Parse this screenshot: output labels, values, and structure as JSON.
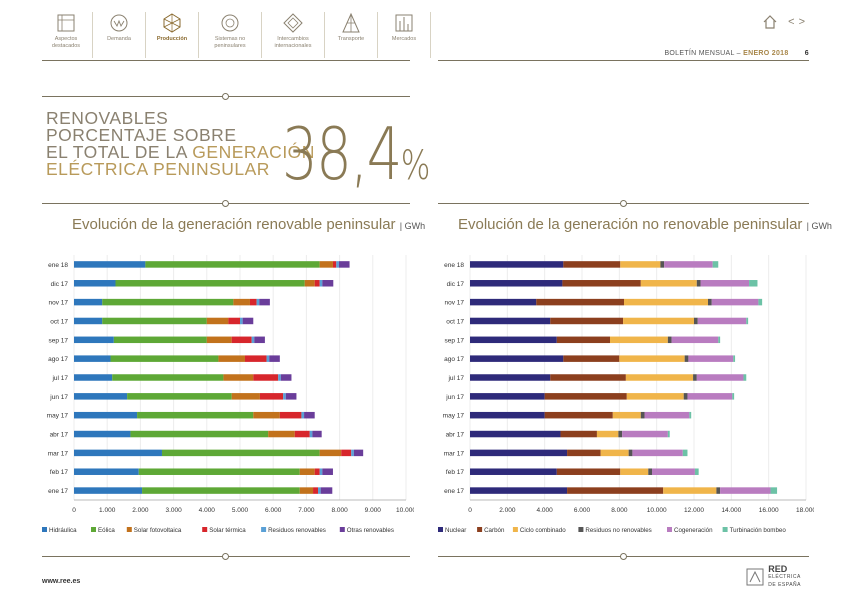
{
  "nav": [
    {
      "label": "Aspectos destacados",
      "icon": "highlights-icon",
      "active": false
    },
    {
      "label": "Demanda",
      "icon": "demand-icon",
      "active": false
    },
    {
      "label": "Producción",
      "icon": "production-icon",
      "active": true
    },
    {
      "label": "Sistemas no peninsulares",
      "icon": "non-peninsular-icon",
      "active": false
    },
    {
      "label": "Intercambios internacionales",
      "icon": "international-exchange-icon",
      "active": false
    },
    {
      "label": "Transporte",
      "icon": "transport-icon",
      "active": false
    },
    {
      "label": "Mercados",
      "icon": "markets-icon",
      "active": false
    }
  ],
  "header": {
    "bulletin_prefix": "BOLETÍN MENSUAL",
    "separator": "–",
    "month": "ENERO 2018",
    "page": "6",
    "prev_arrow": "<",
    "next_arrow": ">"
  },
  "headline": {
    "line1": "RENOVABLES",
    "line2": "PORCENTAJE SOBRE",
    "line3a": "EL TOTAL DE LA ",
    "line3b": "GENERACIÓN",
    "line4": "ELÉCTRICA PENINSULAR",
    "big_value": "38,4",
    "big_unit": "%"
  },
  "footer": {
    "url": "www.ree.es",
    "logo_line1": "RED",
    "logo_line2": "ELÉCTRICA",
    "logo_line3": "DE ESPAÑA"
  },
  "colors": {
    "accent": "#a8874a",
    "rule": "#7a735f"
  },
  "chart_data": [
    {
      "type": "bar",
      "orientation": "horizontal",
      "stacked": true,
      "title": "Evolución de la generación renovable peninsular",
      "unit": "GWh",
      "categories": [
        "ene 18",
        "dic 17",
        "nov 17",
        "oct 17",
        "sep 17",
        "ago 17",
        "jul 17",
        "jun 17",
        "may 17",
        "abr 17",
        "mar 17",
        "feb 17",
        "ene 17"
      ],
      "xlim": [
        0,
        10000
      ],
      "xticks": [
        "0",
        "1.000",
        "2.000",
        "3.000",
        "4.000",
        "5.000",
        "6.000",
        "7.000",
        "8.000",
        "9.000",
        "10.000"
      ],
      "grid": true,
      "legend": "bottom",
      "series": [
        {
          "name": "Hidráulica",
          "color": "#2e77bc",
          "values": [
            2150,
            1250,
            850,
            850,
            1200,
            1100,
            1150,
            1600,
            1900,
            1700,
            2650,
            1950,
            2050
          ]
        },
        {
          "name": "Eólica",
          "color": "#5ea836",
          "values": [
            5250,
            5700,
            3950,
            3150,
            2800,
            3250,
            3350,
            3150,
            3500,
            4150,
            4750,
            4850,
            4750
          ]
        },
        {
          "name": "Solar fotovoltaica",
          "color": "#c2721c",
          "values": [
            400,
            300,
            500,
            650,
            750,
            800,
            900,
            850,
            800,
            800,
            650,
            450,
            400
          ]
        },
        {
          "name": "Solar térmica",
          "color": "#d7262c",
          "values": [
            100,
            150,
            200,
            350,
            600,
            650,
            750,
            700,
            650,
            450,
            300,
            150,
            150
          ]
        },
        {
          "name": "Residuos renovables",
          "color": "#5aa0d6",
          "values": [
            80,
            80,
            80,
            80,
            80,
            80,
            80,
            80,
            80,
            80,
            80,
            80,
            80
          ]
        },
        {
          "name": "Otras renovables",
          "color": "#6a3d9a",
          "values": [
            320,
            330,
            320,
            320,
            320,
            320,
            320,
            320,
            320,
            280,
            280,
            320,
            350
          ]
        }
      ]
    },
    {
      "type": "bar",
      "orientation": "horizontal",
      "stacked": true,
      "title": "Evolución de la generación no renovable peninsular",
      "unit": "GWh",
      "categories": [
        "ene 18",
        "dic 17",
        "nov 17",
        "oct 17",
        "sep 17",
        "ago 17",
        "jul 17",
        "jun 17",
        "may 17",
        "abr 17",
        "mar 17",
        "feb 17",
        "ene 17"
      ],
      "xlim": [
        0,
        18000
      ],
      "xticks": [
        "0",
        "2.000",
        "4.000",
        "6.000",
        "8.000",
        "10.000",
        "12.000",
        "14.000",
        "16.000",
        "18.000"
      ],
      "grid": true,
      "legend": "bottom",
      "series": [
        {
          "name": "Nuclear",
          "color": "#2e2a7a",
          "values": [
            5000,
            4950,
            3550,
            4300,
            4650,
            5000,
            4300,
            4000,
            4000,
            4850,
            5200,
            4650,
            5200
          ]
        },
        {
          "name": "Carbón",
          "color": "#8c3f1e",
          "values": [
            3050,
            4200,
            4700,
            3900,
            2850,
            3000,
            4050,
            4400,
            3650,
            1950,
            1800,
            3400,
            5150
          ]
        },
        {
          "name": "Ciclo combinado",
          "color": "#f0b54a",
          "values": [
            2150,
            3000,
            4500,
            3800,
            3100,
            3500,
            3600,
            3050,
            1500,
            1150,
            1500,
            1500,
            2850
          ]
        },
        {
          "name": "Residuos no renovables",
          "color": "#555555",
          "values": [
            200,
            200,
            200,
            200,
            200,
            200,
            200,
            200,
            200,
            200,
            200,
            200,
            200
          ]
        },
        {
          "name": "Cogeneración",
          "color": "#b97cc0",
          "values": [
            2600,
            2600,
            2500,
            2600,
            2500,
            2400,
            2500,
            2400,
            2400,
            2450,
            2700,
            2300,
            2700
          ]
        },
        {
          "name": "Turbinación bombeo",
          "color": "#6cc2a6",
          "values": [
            300,
            450,
            200,
            100,
            100,
            100,
            150,
            100,
            100,
            100,
            250,
            200,
            350
          ]
        }
      ]
    }
  ]
}
